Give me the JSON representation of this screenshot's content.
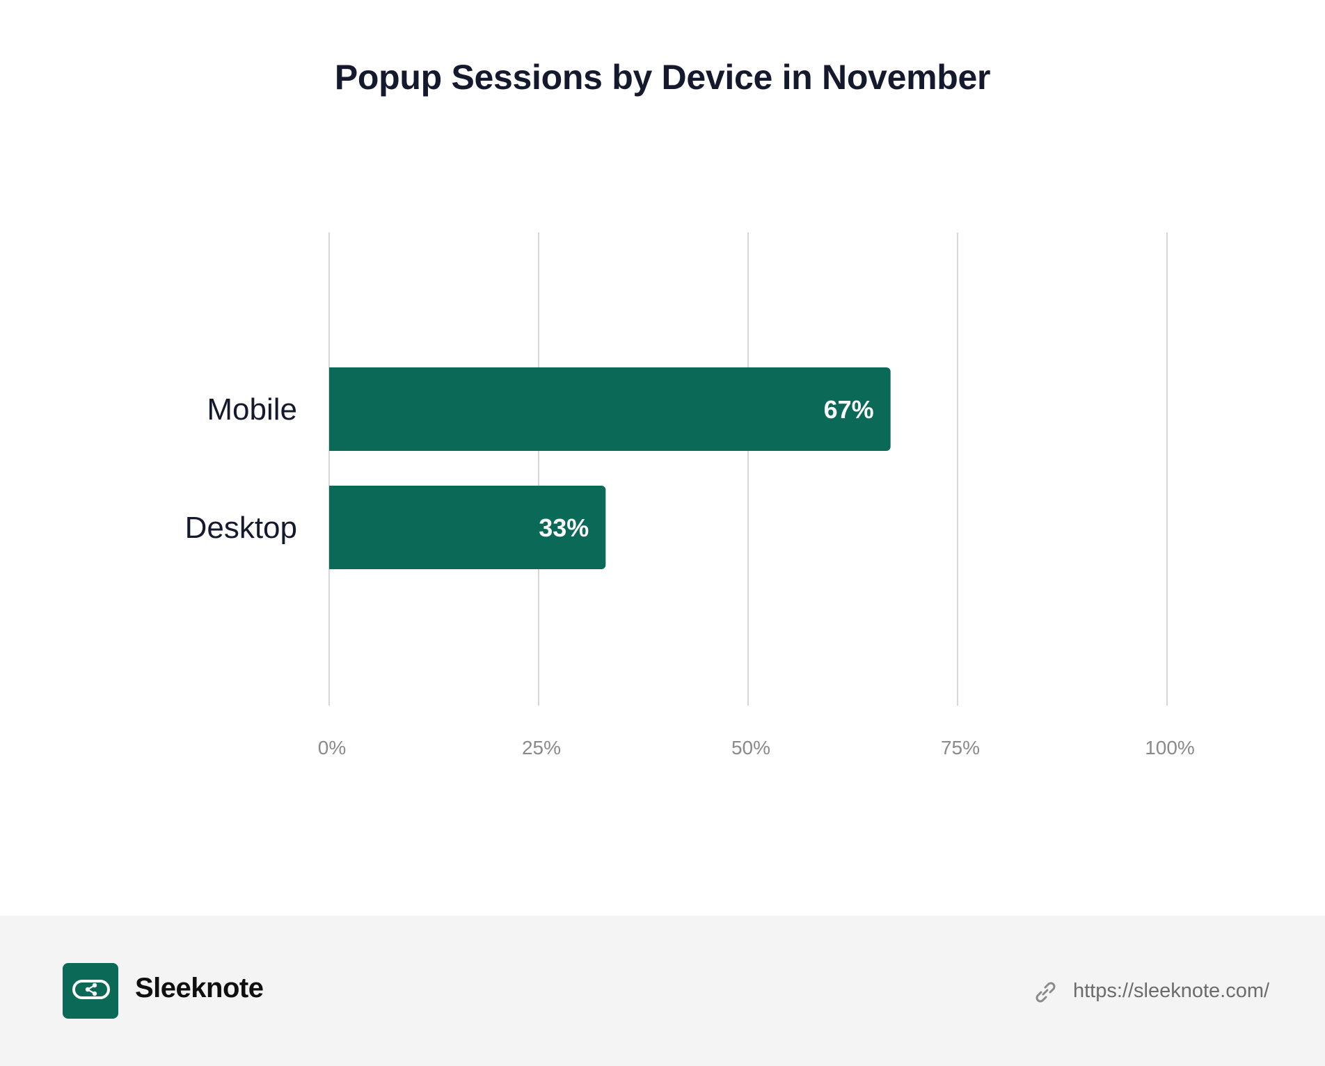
{
  "chart_data": {
    "type": "bar",
    "orientation": "horizontal",
    "title": "Popup Sessions by Device in November",
    "categories": [
      "Mobile",
      "Desktop"
    ],
    "values": [
      67,
      33
    ],
    "value_labels": [
      "67%",
      "33%"
    ],
    "xlim": [
      0,
      100
    ],
    "xticks": [
      0,
      25,
      50,
      75,
      100
    ],
    "xtick_labels": [
      "0%",
      "25%",
      "50%",
      "75%",
      "100%"
    ],
    "grid": "vertical",
    "bar_color": "#0a6957",
    "xlabel": "",
    "ylabel": ""
  },
  "footer": {
    "brand": "Sleeknote",
    "brand_icon": "sleeknote-logo-icon",
    "link_icon": "link-icon",
    "url": "https://sleeknote.com/",
    "background": "#f4f4f4"
  }
}
